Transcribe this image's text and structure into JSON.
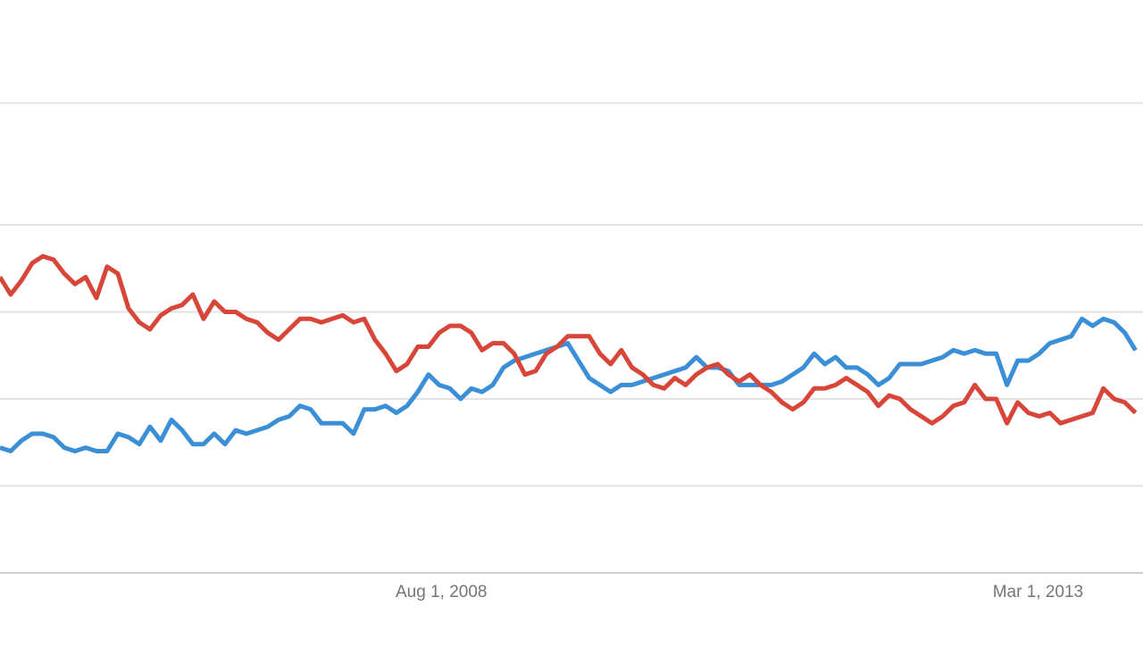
{
  "chart_data": {
    "type": "line",
    "x": [
      0,
      1,
      2,
      3,
      4,
      5,
      6,
      7,
      8,
      9,
      10,
      11,
      12,
      13,
      14,
      15,
      16,
      17,
      18,
      19,
      20,
      21,
      22,
      23,
      24,
      25,
      26,
      27,
      28,
      29,
      30,
      31,
      32,
      33,
      34,
      35,
      36,
      37,
      38,
      39,
      40,
      41,
      42,
      43,
      44,
      45,
      46,
      47,
      48,
      49,
      50,
      51,
      52,
      53,
      54,
      55,
      56,
      57,
      58,
      59,
      60,
      61,
      62,
      63,
      64,
      65,
      66,
      67,
      68,
      69,
      70,
      71,
      72,
      73,
      74,
      75,
      76,
      77,
      78,
      79,
      80,
      81,
      82,
      83,
      84,
      85,
      86,
      87,
      88,
      89,
      90,
      91,
      92,
      93,
      94,
      95,
      96,
      97,
      98,
      99,
      100,
      101,
      102,
      103,
      104,
      105,
      106
    ],
    "series": [
      {
        "color": "#3a8fd6",
        "values": [
          36,
          35,
          38,
          40,
          40,
          39,
          36,
          35,
          36,
          35,
          35,
          40,
          39,
          37,
          42,
          38,
          44,
          41,
          37,
          37,
          40,
          37,
          41,
          40,
          41,
          42,
          44,
          45,
          48,
          47,
          43,
          43,
          43,
          40,
          47,
          47,
          48,
          46,
          48,
          52,
          57,
          54,
          53,
          50,
          53,
          52,
          54,
          59,
          61,
          62,
          63,
          64,
          65,
          66,
          61,
          56,
          54,
          52,
          54,
          54,
          55,
          56,
          57,
          58,
          59,
          62,
          59,
          59,
          58,
          54,
          54,
          54,
          54,
          55,
          57,
          59,
          63,
          60,
          62,
          59,
          59,
          57,
          54,
          56,
          60,
          60,
          60,
          61,
          62,
          64,
          63,
          64,
          63,
          63,
          54,
          61,
          61,
          63,
          66,
          67,
          68,
          73,
          71,
          73,
          72,
          69,
          64
        ]
      },
      {
        "color": "#d8463a",
        "values": [
          85,
          80,
          84,
          89,
          91,
          90,
          86,
          83,
          85,
          79,
          88,
          86,
          76,
          72,
          70,
          74,
          76,
          77,
          80,
          73,
          78,
          75,
          75,
          73,
          72,
          69,
          67,
          70,
          73,
          73,
          72,
          73,
          74,
          72,
          73,
          67,
          63,
          58,
          60,
          65,
          65,
          69,
          71,
          71,
          69,
          64,
          66,
          66,
          63,
          57,
          58,
          63,
          65,
          68,
          68,
          68,
          63,
          60,
          64,
          59,
          57,
          54,
          53,
          56,
          54,
          57,
          59,
          60,
          57,
          55,
          57,
          54,
          52,
          49,
          47,
          49,
          53,
          53,
          54,
          56,
          54,
          52,
          48,
          51,
          50,
          47,
          45,
          43,
          45,
          48,
          49,
          54,
          50,
          50,
          43,
          49,
          46,
          45,
          46,
          43,
          44,
          45,
          46,
          53,
          50,
          49,
          46
        ]
      }
    ],
    "xlim": [
      0,
      106.7
    ],
    "xticks": [
      {
        "value": 41.2,
        "label": "Aug 1, 2008"
      },
      {
        "value": 96.9,
        "label": "Mar 1, 2013"
      }
    ],
    "ylim": [
      0,
      135
    ],
    "yticks": [
      0,
      25,
      50,
      75,
      100,
      135
    ],
    "grid": true
  }
}
